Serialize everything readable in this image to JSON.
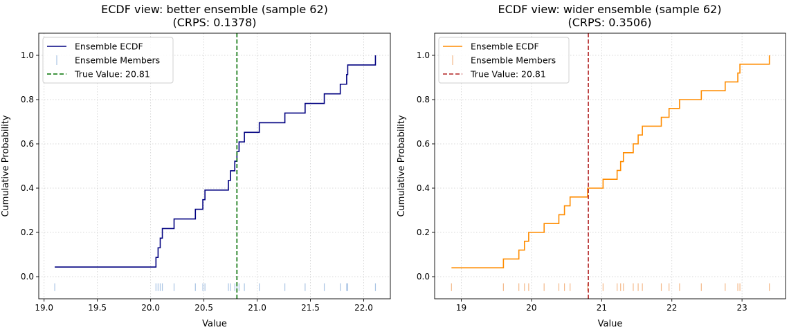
{
  "chart_data": [
    {
      "type": "line",
      "title": "ECDF view: better ensemble (sample 62)",
      "subtitle": "(CRPS: 0.1378)",
      "xlabel": "Value",
      "ylabel": "Cumulative Probability",
      "xlim": [
        18.95,
        22.25
      ],
      "ylim": [
        -0.1,
        1.1
      ],
      "xticks": [
        19.0,
        19.5,
        20.0,
        20.5,
        21.0,
        21.5,
        22.0
      ],
      "xtick_labels": [
        "19.0",
        "19.5",
        "20.0",
        "20.5",
        "21.0",
        "21.5",
        "22.0"
      ],
      "yticks": [
        0.0,
        0.2,
        0.4,
        0.6,
        0.8,
        1.0
      ],
      "ytick_labels": [
        "0.0",
        "0.2",
        "0.4",
        "0.6",
        "0.8",
        "1.0"
      ],
      "grid": true,
      "legend_position": "top-left",
      "ecdf_color": "#000080",
      "rug_color": "#a9c4e4",
      "true_color": "#007000",
      "true_value": 20.81,
      "legend": [
        "Ensemble ECDF",
        "Ensemble Members",
        "True Value: 20.81"
      ],
      "members": [
        19.1,
        20.05,
        20.07,
        20.09,
        20.11,
        20.22,
        20.42,
        20.49,
        20.51,
        20.73,
        20.75,
        20.79,
        20.81,
        20.83,
        20.88,
        21.02,
        21.26,
        21.45,
        21.63,
        21.78,
        21.84,
        21.85,
        22.11
      ]
    },
    {
      "type": "line",
      "title": "ECDF view: wider ensemble (sample 62)",
      "subtitle": "(CRPS: 0.3506)",
      "xlabel": "Value",
      "ylabel": "Cumulative Probability",
      "xlim": [
        18.62,
        23.62
      ],
      "ylim": [
        -0.1,
        1.1
      ],
      "xticks": [
        19,
        20,
        21,
        22,
        23
      ],
      "xtick_labels": [
        "19",
        "20",
        "21",
        "22",
        "23"
      ],
      "yticks": [
        0.0,
        0.2,
        0.4,
        0.6,
        0.8,
        1.0
      ],
      "ytick_labels": [
        "0.0",
        "0.2",
        "0.4",
        "0.6",
        "0.8",
        "1.0"
      ],
      "grid": true,
      "legend_position": "top-left",
      "ecdf_color": "#ff8c00",
      "rug_color": "#f4b98a",
      "true_color": "#b22222",
      "true_value": 20.81,
      "legend": [
        "Ensemble ECDF",
        "Ensemble Members",
        "True Value: 20.81"
      ],
      "members": [
        18.86,
        19.6,
        19.82,
        19.9,
        19.96,
        20.18,
        20.39,
        20.47,
        20.55,
        20.8,
        21.02,
        21.22,
        21.27,
        21.31,
        21.45,
        21.52,
        21.58,
        21.85,
        21.96,
        22.11,
        22.42,
        22.76,
        22.94,
        22.97,
        23.39
      ]
    }
  ]
}
